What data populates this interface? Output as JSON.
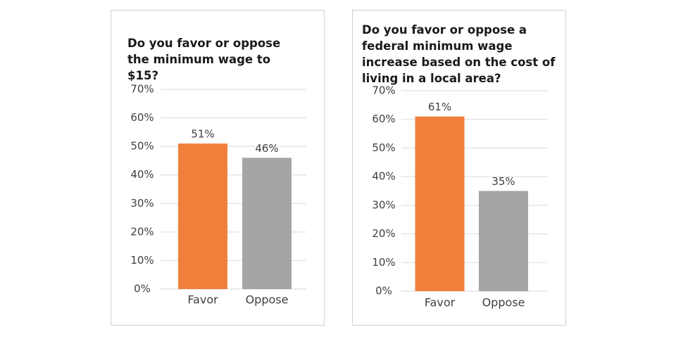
{
  "chart_data": [
    {
      "type": "bar",
      "title": "Do you favor or oppose the minimum wage to $15?",
      "categories": [
        "Favor",
        "Oppose"
      ],
      "values": [
        51,
        46
      ],
      "value_labels": [
        "51%",
        "46%"
      ],
      "colors": [
        "#f07f3c",
        "#a5a5a5"
      ],
      "ylim": [
        0,
        70
      ],
      "yticks": [
        {
          "value": 0,
          "label": "0%"
        },
        {
          "value": 10,
          "label": "10%"
        },
        {
          "value": 20,
          "label": "20%"
        },
        {
          "value": 30,
          "label": "30%"
        },
        {
          "value": 40,
          "label": "40%"
        },
        {
          "value": 50,
          "label": "50%"
        },
        {
          "value": 60,
          "label": "60%"
        },
        {
          "value": 70,
          "label": "70%"
        }
      ],
      "grid": true
    },
    {
      "type": "bar",
      "title": "Do you favor or oppose a federal minimum wage increase based on the cost of living in a local area?",
      "categories": [
        "Favor",
        "Oppose"
      ],
      "values": [
        61,
        35
      ],
      "value_labels": [
        "61%",
        "35%"
      ],
      "colors": [
        "#f07f3c",
        "#a5a5a5"
      ],
      "ylim": [
        0,
        70
      ],
      "yticks": [
        {
          "value": 0,
          "label": "0%"
        },
        {
          "value": 10,
          "label": "10%"
        },
        {
          "value": 20,
          "label": "20%"
        },
        {
          "value": 30,
          "label": "30%"
        },
        {
          "value": 40,
          "label": "40%"
        },
        {
          "value": 50,
          "label": "50%"
        },
        {
          "value": 60,
          "label": "60%"
        },
        {
          "value": 70,
          "label": "70%"
        }
      ],
      "grid": true
    }
  ]
}
